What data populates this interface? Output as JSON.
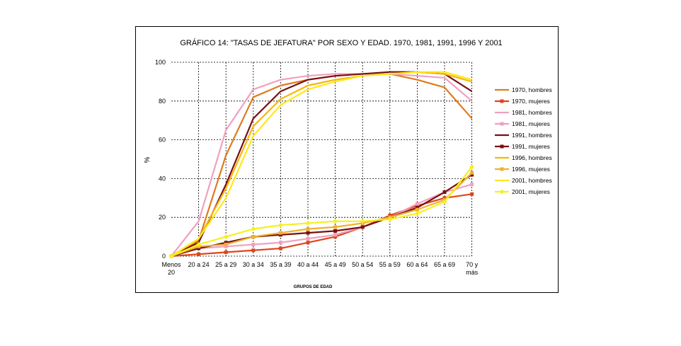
{
  "chart_data": {
    "type": "line",
    "title": "GRÁFICO 14: \"TASAS DE JEFATURA\" POR SEXO Y EDAD. 1970, 1981, 1991, 1996 Y 2001",
    "xlabel": "GRUPOS DE EDAD",
    "ylabel": "%",
    "ylim": [
      0,
      100
    ],
    "yticks": [
      0,
      20,
      40,
      60,
      80,
      100
    ],
    "grid": true,
    "legend_position": "right",
    "categories": [
      "Menos 20",
      "20 a 24",
      "25 a 29",
      "30 a 34",
      "35 a 39",
      "40 a 44",
      "45 a 49",
      "50 a 54",
      "55 a 59",
      "60 a 64",
      "65 a 69",
      "70 y más"
    ],
    "series": [
      {
        "name": "1970, hombres",
        "color": "#e07a1e",
        "marker": "none",
        "values": [
          0,
          8,
          52,
          82,
          88,
          91,
          93,
          94,
          94,
          91,
          87,
          71
        ]
      },
      {
        "name": "1970, mujeres",
        "color": "#e0451a",
        "marker": "square",
        "values": [
          0,
          1,
          2,
          3,
          4,
          7,
          10,
          15,
          21,
          26,
          30,
          32
        ]
      },
      {
        "name": "1981, hombres",
        "color": "#f0a0c0",
        "marker": "none",
        "values": [
          0,
          18,
          65,
          86,
          91,
          93,
          94,
          94,
          94,
          93,
          92,
          80
        ]
      },
      {
        "name": "1981, mujeres",
        "color": "#f0a0c0",
        "marker": "square",
        "values": [
          0,
          4,
          5,
          6,
          7,
          9,
          11,
          15,
          20,
          27,
          33,
          37
        ]
      },
      {
        "name": "1991, hombres",
        "color": "#7a1010",
        "marker": "none",
        "values": [
          0,
          7,
          37,
          71,
          85,
          91,
          93,
          94,
          95,
          95,
          94,
          85
        ]
      },
      {
        "name": "1991, mujeres",
        "color": "#7a1010",
        "marker": "square",
        "values": [
          0,
          4,
          7,
          10,
          11,
          12,
          13,
          15,
          20,
          25,
          33,
          42
        ]
      },
      {
        "name": "1996, hombres",
        "color": "#f5b70a",
        "marker": "none",
        "values": [
          0,
          9,
          35,
          67,
          81,
          88,
          91,
          93,
          94,
          95,
          94,
          90
        ]
      },
      {
        "name": "1996, mujeres",
        "color": "#f0b030",
        "marker": "square",
        "values": [
          0,
          5,
          6,
          10,
          12,
          14,
          15,
          17,
          20,
          24,
          29,
          43
        ]
      },
      {
        "name": "2001, hombres",
        "color": "#ffe81a",
        "marker": "none",
        "values": [
          0,
          9,
          30,
          62,
          78,
          86,
          90,
          93,
          94,
          95,
          95,
          91
        ]
      },
      {
        "name": "2001, mujeres",
        "color": "#f5f020",
        "marker": "diamond",
        "values": [
          0,
          6,
          10,
          14,
          16,
          17,
          18,
          18,
          19,
          22,
          28,
          46
        ]
      }
    ]
  }
}
